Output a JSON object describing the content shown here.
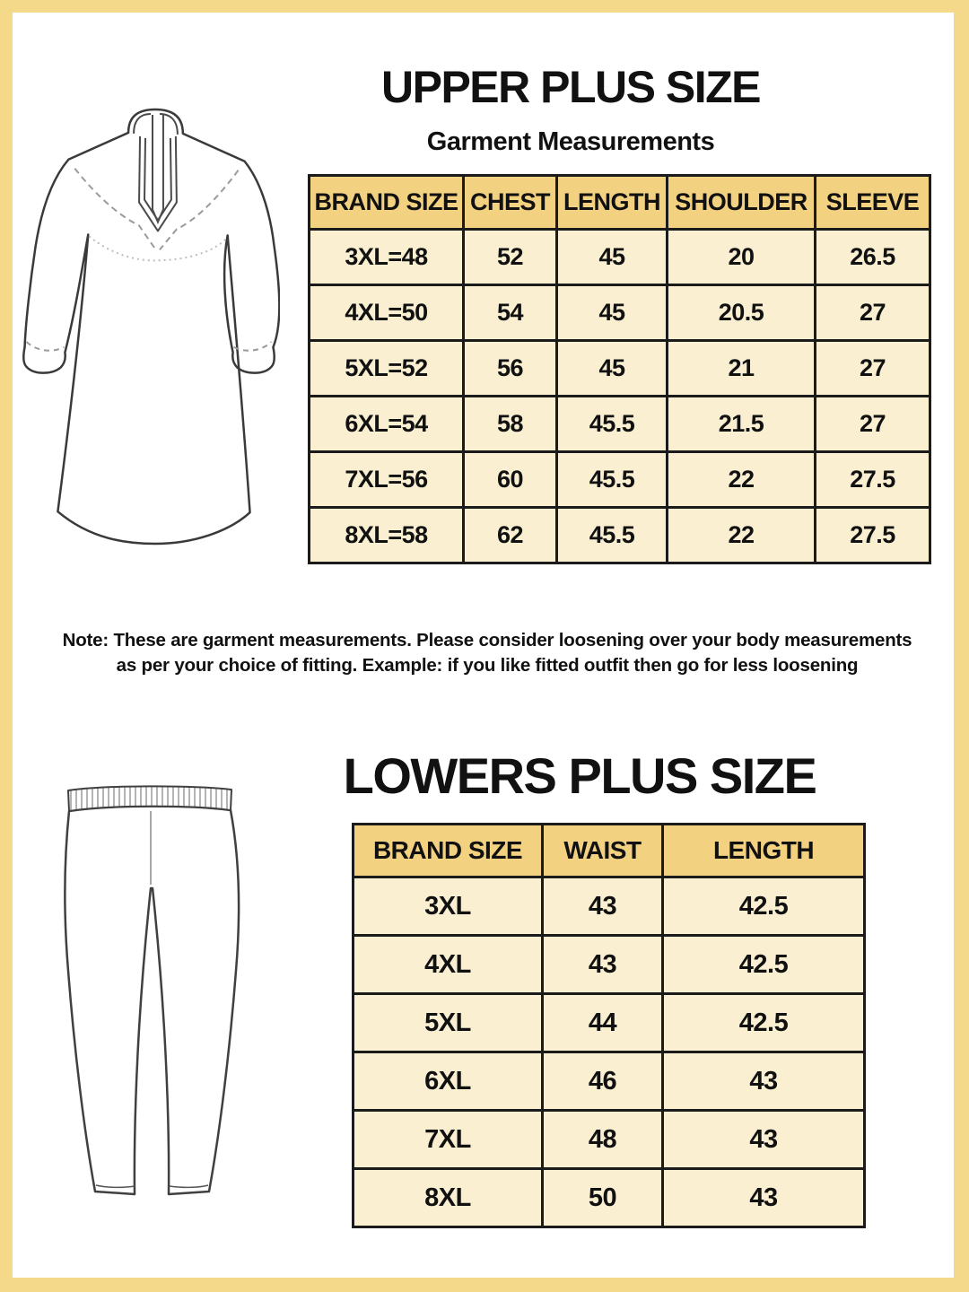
{
  "colors": {
    "frame-gold": "#F5D98B",
    "header-gold": "#F2D180",
    "cell-cream": "#FAF0D1",
    "table-border": "#1B1B1B",
    "text": "#111111",
    "page-bg": "#FFFFFF"
  },
  "upper_section": {
    "title": "UPPER PLUS SIZE",
    "subtitle": "Garment Measurements",
    "table": {
      "headers": [
        "BRAND SIZE",
        "CHEST",
        "LENGTH",
        "SHOULDER",
        "SLEEVE"
      ],
      "rows": [
        [
          "3XL=48",
          "52",
          "45",
          "20",
          "26.5"
        ],
        [
          "4XL=50",
          "54",
          "45",
          "20.5",
          "27"
        ],
        [
          "5XL=52",
          "56",
          "45",
          "21",
          "27"
        ],
        [
          "6XL=54",
          "58",
          "45.5",
          "21.5",
          "27"
        ],
        [
          "7XL=56",
          "60",
          "45.5",
          "22",
          "27.5"
        ],
        [
          "8XL=58",
          "62",
          "45.5",
          "22",
          "27.5"
        ]
      ]
    },
    "note_line1": "Note: These are garment measurements. Please consider loosening over your body measurements",
    "note_line2": "as per your choice of fitting. Example: if you like fitted outfit then go for less loosening"
  },
  "lower_section": {
    "title": "LOWERS PLUS SIZE",
    "table": {
      "headers": [
        "BRAND SIZE",
        "WAIST",
        "LENGTH"
      ],
      "rows": [
        [
          "3XL",
          "43",
          "42.5"
        ],
        [
          "4XL",
          "43",
          "42.5"
        ],
        [
          "5XL",
          "44",
          "42.5"
        ],
        [
          "6XL",
          "46",
          "43"
        ],
        [
          "7XL",
          "48",
          "43"
        ],
        [
          "8XL",
          "50",
          "43"
        ]
      ]
    }
  }
}
